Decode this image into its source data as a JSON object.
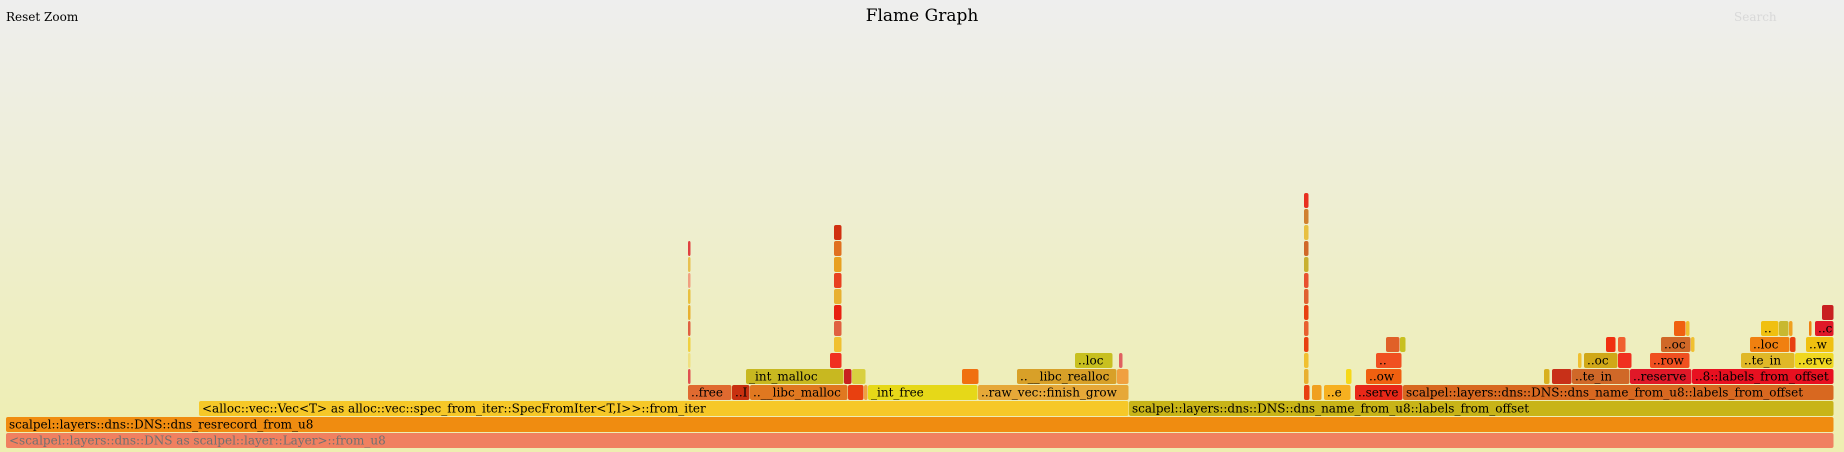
{
  "header": {
    "title": "Flame Graph",
    "reset_zoom_label": "Reset Zoom",
    "search_label": "Search"
  },
  "flame": {
    "total_samples": 1828,
    "frames": [
      {
        "text": "<scalpel::layers::dns::DNS as scalpel::layer::Layer>::from_u8",
        "start": 0,
        "width": 1828,
        "depth": 0,
        "color": "#f08060",
        "muted": true
      },
      {
        "text": "scalpel::layers::dns::DNS::dns_resrecord_from_u8",
        "start": 0,
        "width": 1828,
        "depth": 1,
        "color": "#f08c10"
      },
      {
        "text": "<alloc::vec::Vec<T> as alloc::vec::spec_from_iter::SpecFromIter<T,I>>::from_iter",
        "start": 193,
        "width": 930,
        "depth": 2,
        "color": "#f6c828"
      },
      {
        "text": "scalpel::layers::dns::DNS::dns_name_from_u8::labels_from_offset",
        "start": 1123,
        "width": 705,
        "depth": 2,
        "color": "#c8b418"
      },
      {
        "text": "..free",
        "start": 682,
        "width": 44,
        "depth": 3,
        "color": "#e06a30"
      },
      {
        "text": "..I",
        "start": 726,
        "width": 18,
        "depth": 3,
        "color": "#c83010"
      },
      {
        "text": "..__libc_malloc",
        "start": 744,
        "width": 98,
        "depth": 3,
        "color": "#e07820"
      },
      {
        "text": "",
        "start": 842,
        "width": 16,
        "depth": 3,
        "color": "#e84010"
      },
      {
        "text": "",
        "start": 858,
        "width": 4,
        "depth": 3,
        "color": "#f0a040"
      },
      {
        "text": "_int_free",
        "start": 862,
        "width": 110,
        "depth": 3,
        "color": "#e6d818"
      },
      {
        "text": "..raw_vec::finish_grow",
        "start": 972,
        "width": 151,
        "depth": 3,
        "color": "#e6a838"
      },
      {
        "text": "",
        "start": 1298,
        "width": 6,
        "depth": 3,
        "color": "#e84010"
      },
      {
        "text": "",
        "start": 1306,
        "width": 10,
        "depth": 3,
        "color": "#f0a020"
      },
      {
        "text": "..e",
        "start": 1318,
        "width": 27,
        "depth": 3,
        "color": "#f6b020"
      },
      {
        "text": "..serve",
        "start": 1349,
        "width": 48,
        "depth": 3,
        "color": "#e82818"
      },
      {
        "text": "scalpel::layers::dns::DNS::dns_name_from_u8::labels_from_offset",
        "start": 1397,
        "width": 431,
        "depth": 3,
        "color": "#d86820"
      },
      {
        "text": "",
        "start": 682,
        "width": 3,
        "depth": 4,
        "color": "#e05050"
      },
      {
        "text": "_int_malloc",
        "start": 740,
        "width": 98,
        "depth": 4,
        "color": "#c8b820"
      },
      {
        "text": "",
        "start": 838,
        "width": 8,
        "depth": 4,
        "color": "#c82020"
      },
      {
        "text": "",
        "start": 846,
        "width": 14,
        "depth": 4,
        "color": "#d8d040"
      },
      {
        "text": "",
        "start": 956,
        "width": 17,
        "depth": 4,
        "color": "#f07010"
      },
      {
        "text": "..__libc_realloc",
        "start": 1011,
        "width": 100,
        "depth": 4,
        "color": "#d8a028"
      },
      {
        "text": "",
        "start": 1111,
        "width": 12,
        "depth": 4,
        "color": "#f0a040"
      },
      {
        "text": "",
        "start": 1298,
        "width": 5,
        "depth": 4,
        "color": "#e8b030"
      },
      {
        "text": "",
        "start": 1340,
        "width": 6,
        "depth": 4,
        "color": "#f6d818"
      },
      {
        "text": "..ow",
        "start": 1360,
        "width": 36,
        "depth": 4,
        "color": "#f06010"
      },
      {
        "text": "",
        "start": 1538,
        "width": 6,
        "depth": 4,
        "color": "#d8b020"
      },
      {
        "text": "",
        "start": 1546,
        "width": 20,
        "depth": 4,
        "color": "#c83018"
      },
      {
        "text": "..te_in",
        "start": 1566,
        "width": 58,
        "depth": 4,
        "color": "#d06828"
      },
      {
        "text": "..reserve",
        "start": 1624,
        "width": 62,
        "depth": 4,
        "color": "#e01828"
      },
      {
        "text": "..8::labels_from_offset",
        "start": 1686,
        "width": 142,
        "depth": 4,
        "color": "#e81020"
      },
      {
        "text": "",
        "start": 682,
        "width": 3,
        "depth": 5,
        "color": "#f0e080"
      },
      {
        "text": "",
        "start": 824,
        "width": 12,
        "depth": 5,
        "color": "#f03020"
      },
      {
        "text": "..loc",
        "start": 1069,
        "width": 38,
        "depth": 5,
        "color": "#c8c020"
      },
      {
        "text": "",
        "start": 1113,
        "width": 4,
        "depth": 5,
        "color": "#e06060"
      },
      {
        "text": "",
        "start": 1298,
        "width": 5,
        "depth": 5,
        "color": "#f0c030"
      },
      {
        "text": "..",
        "start": 1370,
        "width": 26,
        "depth": 5,
        "color": "#f05020"
      },
      {
        "text": "",
        "start": 1572,
        "width": 4,
        "depth": 5,
        "color": "#f0c030"
      },
      {
        "text": "..oc",
        "start": 1578,
        "width": 34,
        "depth": 5,
        "color": "#d0a818"
      },
      {
        "text": "",
        "start": 1612,
        "width": 14,
        "depth": 5,
        "color": "#f03020"
      },
      {
        "text": "..row",
        "start": 1644,
        "width": 40,
        "depth": 5,
        "color": "#f05020"
      },
      {
        "text": "..te_in",
        "start": 1735,
        "width": 54,
        "depth": 5,
        "color": "#e0b828"
      },
      {
        "text": "..erve",
        "start": 1789,
        "width": 39,
        "depth": 5,
        "color": "#f0d820"
      },
      {
        "text": "",
        "start": 682,
        "width": 3,
        "depth": 6,
        "color": "#f0d040"
      },
      {
        "text": "",
        "start": 828,
        "width": 8,
        "depth": 6,
        "color": "#f0c030"
      },
      {
        "text": "",
        "start": 1298,
        "width": 5,
        "depth": 6,
        "color": "#e84010"
      },
      {
        "text": "",
        "start": 1380,
        "width": 14,
        "depth": 6,
        "color": "#e06028"
      },
      {
        "text": "",
        "start": 1394,
        "width": 6,
        "depth": 6,
        "color": "#c8c020"
      },
      {
        "text": "",
        "start": 1600,
        "width": 10,
        "depth": 6,
        "color": "#f03010"
      },
      {
        "text": "",
        "start": 1612,
        "width": 8,
        "depth": 6,
        "color": "#f06030"
      },
      {
        "text": "..oc",
        "start": 1655,
        "width": 30,
        "depth": 6,
        "color": "#d06828"
      },
      {
        "text": "",
        "start": 1685,
        "width": 4,
        "depth": 6,
        "color": "#f0c030"
      },
      {
        "text": "..loc",
        "start": 1744,
        "width": 40,
        "depth": 6,
        "color": "#f08010"
      },
      {
        "text": "",
        "start": 1784,
        "width": 6,
        "depth": 6,
        "color": "#e84010"
      },
      {
        "text": "..w",
        "start": 1800,
        "width": 28,
        "depth": 6,
        "color": "#f0c010"
      },
      {
        "text": "",
        "start": 682,
        "width": 3,
        "depth": 7,
        "color": "#e06040"
      },
      {
        "text": "",
        "start": 828,
        "width": 8,
        "depth": 7,
        "color": "#e06040"
      },
      {
        "text": "",
        "start": 1298,
        "width": 5,
        "depth": 7,
        "color": "#e86030"
      },
      {
        "text": "",
        "start": 1668,
        "width": 12,
        "depth": 7,
        "color": "#f06010"
      },
      {
        "text": "",
        "start": 1680,
        "width": 4,
        "depth": 7,
        "color": "#f0c030"
      },
      {
        "text": "..",
        "start": 1755,
        "width": 18,
        "depth": 7,
        "color": "#f0c010"
      },
      {
        "text": "",
        "start": 1773,
        "width": 10,
        "depth": 7,
        "color": "#c8b830"
      },
      {
        "text": "",
        "start": 1783,
        "width": 4,
        "depth": 7,
        "color": "#f0a020"
      },
      {
        "text": "",
        "start": 1803,
        "width": 3,
        "depth": 7,
        "color": "#f08010"
      },
      {
        "text": "..c",
        "start": 1809,
        "width": 19,
        "depth": 7,
        "color": "#e01828"
      },
      {
        "text": "",
        "start": 682,
        "width": 3,
        "depth": 8,
        "color": "#e8b030"
      },
      {
        "text": "",
        "start": 828,
        "width": 8,
        "depth": 8,
        "color": "#e82010"
      },
      {
        "text": "",
        "start": 1298,
        "width": 5,
        "depth": 8,
        "color": "#e84010"
      },
      {
        "text": "",
        "start": 1816,
        "width": 12,
        "depth": 8,
        "color": "#c82020"
      },
      {
        "text": "",
        "start": 682,
        "width": 3,
        "depth": 9,
        "color": "#e8c040"
      },
      {
        "text": "",
        "start": 828,
        "width": 8,
        "depth": 9,
        "color": "#e8b030"
      },
      {
        "text": "",
        "start": 1298,
        "width": 5,
        "depth": 9,
        "color": "#e06030"
      },
      {
        "text": "",
        "start": 682,
        "width": 3,
        "depth": 10,
        "color": "#f0a080"
      },
      {
        "text": "",
        "start": 828,
        "width": 8,
        "depth": 10,
        "color": "#e84020"
      },
      {
        "text": "",
        "start": 1298,
        "width": 5,
        "depth": 10,
        "color": "#e85030"
      },
      {
        "text": "",
        "start": 682,
        "width": 3,
        "depth": 11,
        "color": "#e8c050"
      },
      {
        "text": "",
        "start": 828,
        "width": 8,
        "depth": 11,
        "color": "#e8a020"
      },
      {
        "text": "",
        "start": 1298,
        "width": 5,
        "depth": 11,
        "color": "#c8b030"
      },
      {
        "text": "",
        "start": 682,
        "width": 3,
        "depth": 12,
        "color": "#e04040"
      },
      {
        "text": "",
        "start": 828,
        "width": 8,
        "depth": 12,
        "color": "#e07020"
      },
      {
        "text": "",
        "start": 1298,
        "width": 5,
        "depth": 12,
        "color": "#d06828"
      },
      {
        "text": "",
        "start": 828,
        "width": 8,
        "depth": 13,
        "color": "#d03010"
      },
      {
        "text": "",
        "start": 1298,
        "width": 5,
        "depth": 13,
        "color": "#e8c040"
      },
      {
        "text": "",
        "start": 1298,
        "width": 5,
        "depth": 14,
        "color": "#d08030"
      },
      {
        "text": "",
        "start": 1298,
        "width": 5,
        "depth": 15,
        "color": "#e83020"
      }
    ]
  }
}
